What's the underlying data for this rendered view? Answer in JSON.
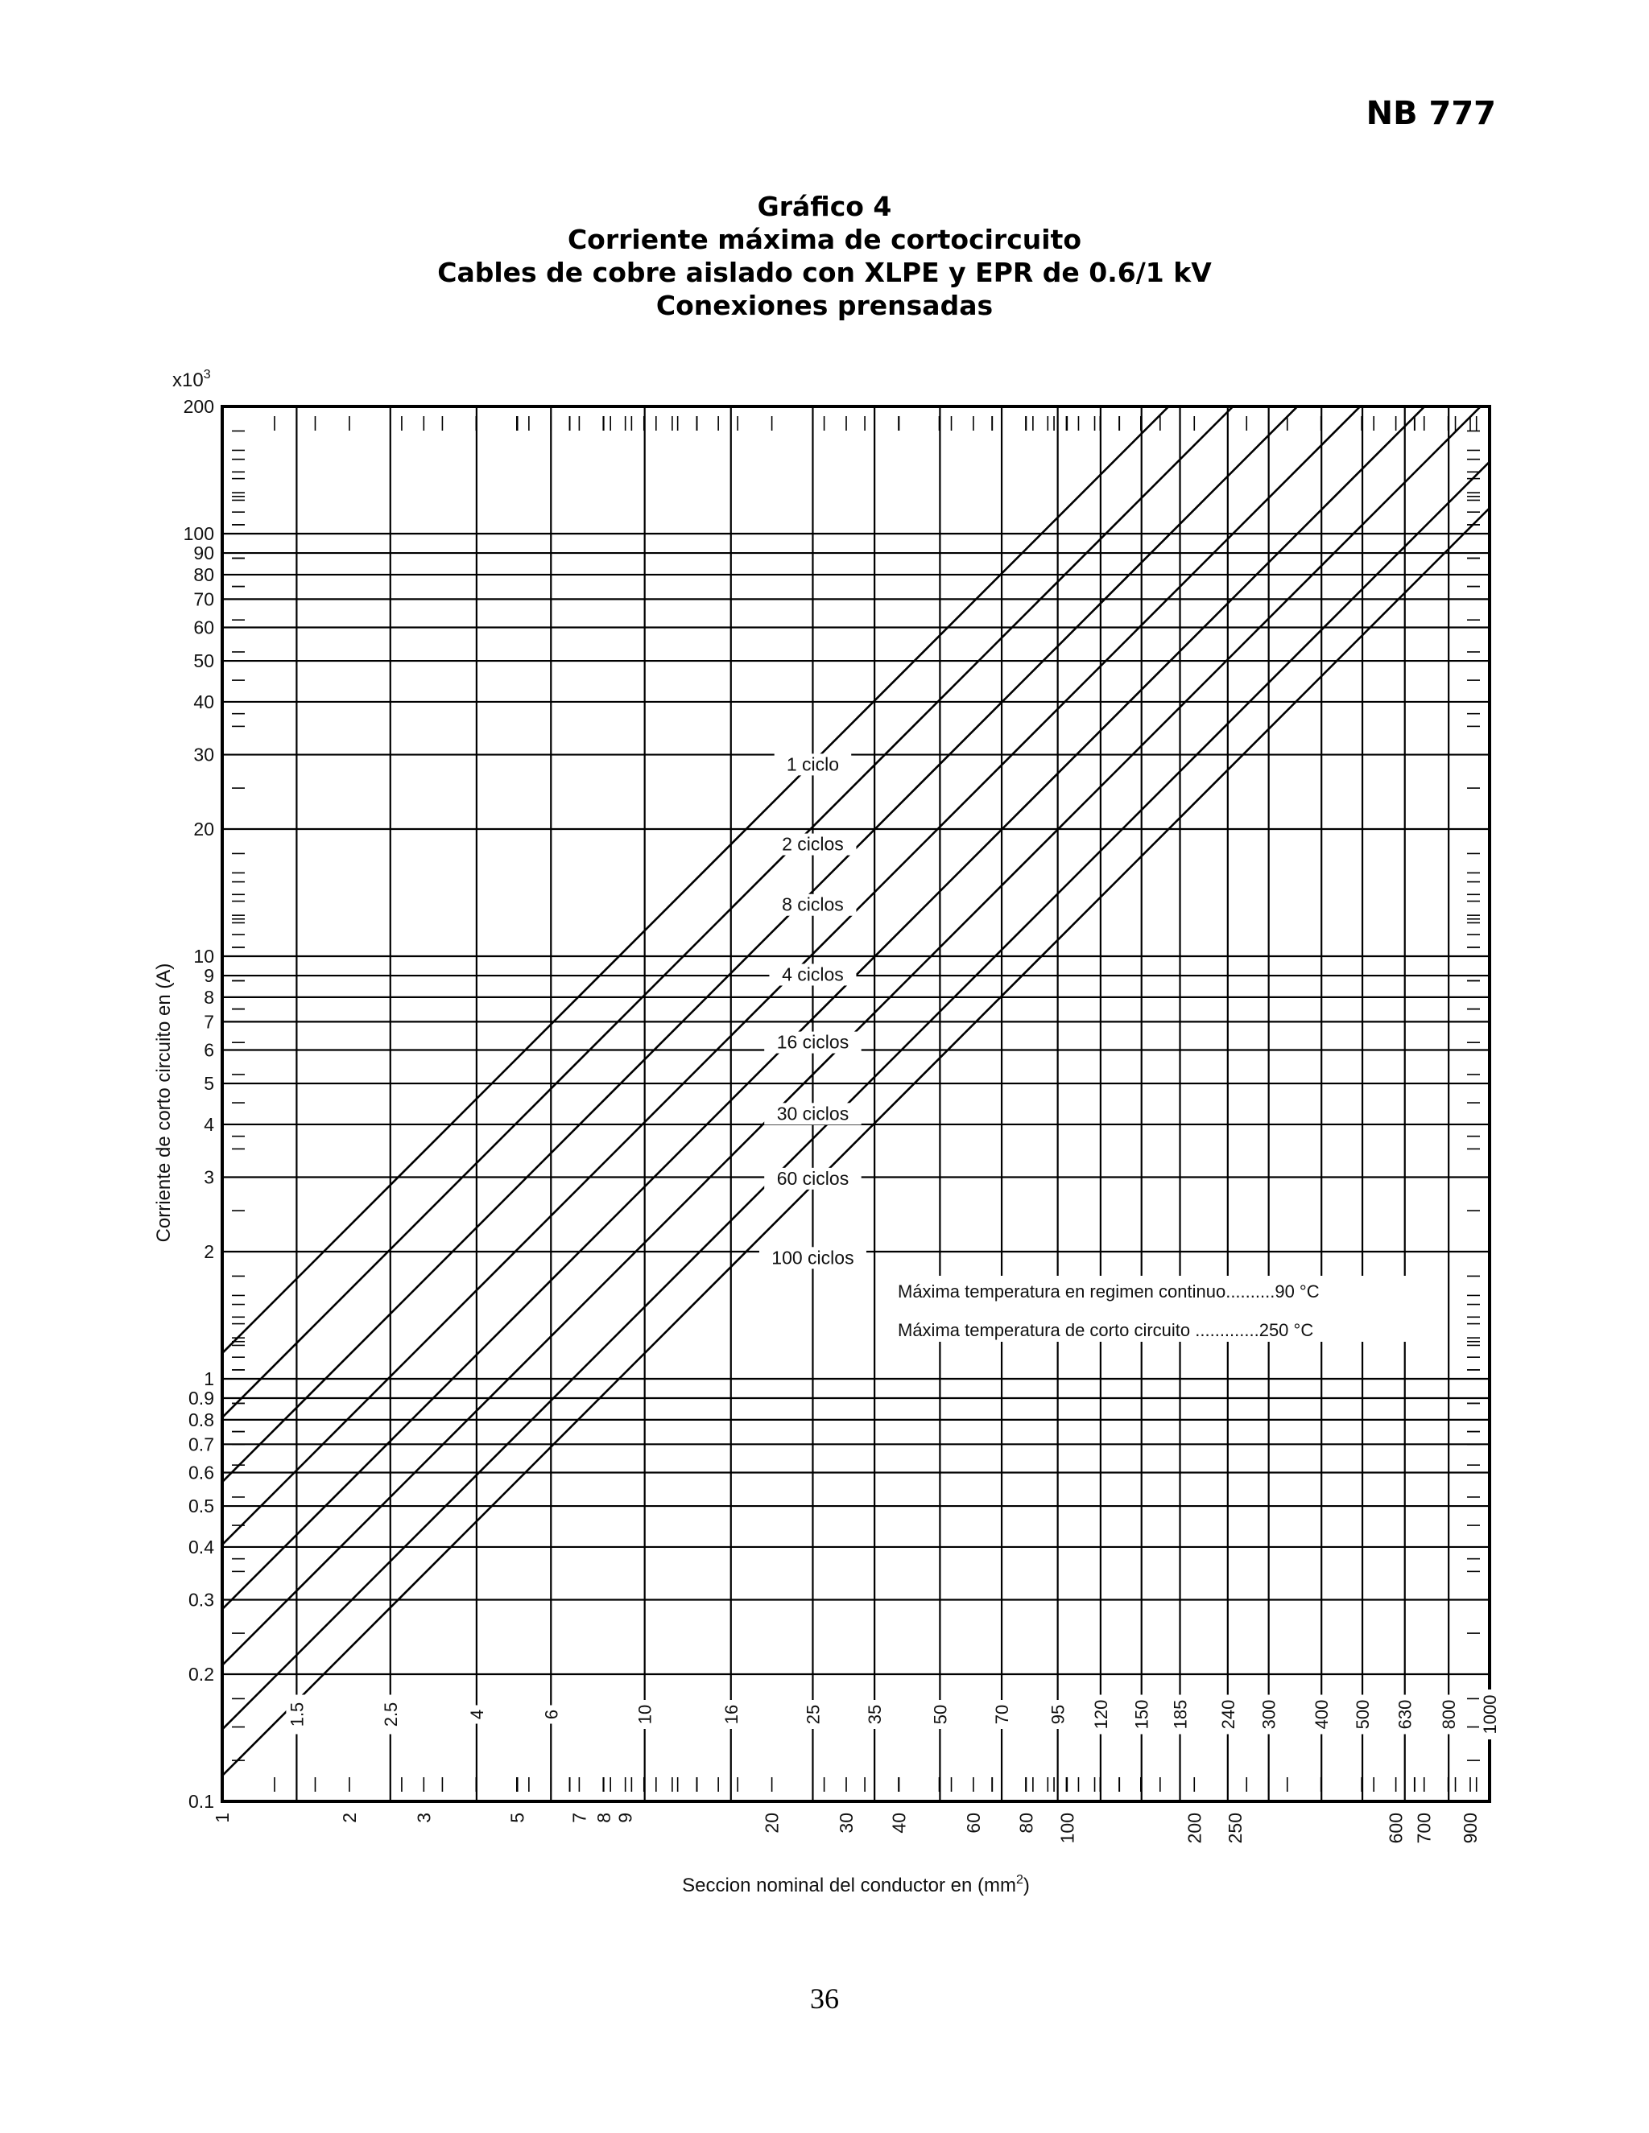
{
  "page": {
    "code": "NB 777",
    "number": "36"
  },
  "chart_title": {
    "line1": "Gráfico 4",
    "line2": "Corriente máxima de cortocircuito",
    "line3": "Cables de cobre aislado con XLPE y EPR de 0.6/1 kV",
    "line4": "Conexiones prensadas"
  },
  "chart_data": {
    "type": "line",
    "title": "Gráfico 4 — Corriente máxima de cortocircuito",
    "xlabel": "Seccion nominal del conductor en (mm",
    "xlabel_sup": "2",
    "xlabel_tail": ")",
    "ylabel": "Corriente de corto circuito en (A)",
    "y_multiplier_label": "x10",
    "y_multiplier_sup": "3",
    "x_scale": "log",
    "y_scale": "log",
    "xlim": [
      1,
      1000
    ],
    "ylim": [
      0.1,
      200
    ],
    "grid": true,
    "x_tick_labels_bottom": [
      {
        "value": 1,
        "label": "1"
      },
      {
        "value": 2,
        "label": "2"
      },
      {
        "value": 3,
        "label": "3"
      },
      {
        "value": 5,
        "label": "5"
      },
      {
        "value": 7,
        "label": "7"
      },
      {
        "value": 8,
        "label": "8"
      },
      {
        "value": 9,
        "label": "9"
      },
      {
        "value": 20,
        "label": "20"
      },
      {
        "value": 30,
        "label": "30"
      },
      {
        "value": 40,
        "label": "40"
      },
      {
        "value": 60,
        "label": "60"
      },
      {
        "value": 80,
        "label": "80"
      },
      {
        "value": 100,
        "label": "100"
      },
      {
        "value": 200,
        "label": "200"
      },
      {
        "value": 250,
        "label": "250"
      },
      {
        "value": 600,
        "label": "600"
      },
      {
        "value": 700,
        "label": "700"
      },
      {
        "value": 900,
        "label": "900"
      }
    ],
    "x_section_labels": [
      {
        "value": 1.5,
        "label": "1.5"
      },
      {
        "value": 2.5,
        "label": "2.5"
      },
      {
        "value": 4,
        "label": "4"
      },
      {
        "value": 6,
        "label": "6"
      },
      {
        "value": 10,
        "label": "10"
      },
      {
        "value": 16,
        "label": "16"
      },
      {
        "value": 25,
        "label": "25"
      },
      {
        "value": 35,
        "label": "35"
      },
      {
        "value": 50,
        "label": "50"
      },
      {
        "value": 70,
        "label": "70"
      },
      {
        "value": 95,
        "label": "95"
      },
      {
        "value": 120,
        "label": "120"
      },
      {
        "value": 150,
        "label": "150"
      },
      {
        "value": 185,
        "label": "185"
      },
      {
        "value": 240,
        "label": "240"
      },
      {
        "value": 300,
        "label": "300"
      },
      {
        "value": 400,
        "label": "400"
      },
      {
        "value": 500,
        "label": "500"
      },
      {
        "value": 630,
        "label": "630"
      },
      {
        "value": 800,
        "label": "800"
      },
      {
        "value": 1000,
        "label": "1000"
      }
    ],
    "y_tick_labels": [
      {
        "value": 200,
        "label": "200"
      },
      {
        "value": 100,
        "label": "100"
      },
      {
        "value": 90,
        "label": "90"
      },
      {
        "value": 80,
        "label": "80"
      },
      {
        "value": 70,
        "label": "70"
      },
      {
        "value": 60,
        "label": "60"
      },
      {
        "value": 50,
        "label": "50"
      },
      {
        "value": 40,
        "label": "40"
      },
      {
        "value": 30,
        "label": "30"
      },
      {
        "value": 20,
        "label": "20"
      },
      {
        "value": 10,
        "label": "10"
      },
      {
        "value": 9,
        "label": "9"
      },
      {
        "value": 8,
        "label": "8"
      },
      {
        "value": 7,
        "label": "7"
      },
      {
        "value": 6,
        "label": "6"
      },
      {
        "value": 5,
        "label": "5"
      },
      {
        "value": 4,
        "label": "4"
      },
      {
        "value": 3,
        "label": "3"
      },
      {
        "value": 2,
        "label": "2"
      },
      {
        "value": 1,
        "label": "1"
      },
      {
        "value": 0.9,
        "label": "0.9"
      },
      {
        "value": 0.8,
        "label": "0.8"
      },
      {
        "value": 0.7,
        "label": "0.7"
      },
      {
        "value": 0.6,
        "label": "0.6"
      },
      {
        "value": 0.5,
        "label": "0.5"
      },
      {
        "value": 0.4,
        "label": "0.4"
      },
      {
        "value": 0.3,
        "label": "0.3"
      },
      {
        "value": 0.2,
        "label": "0.2"
      },
      {
        "value": 0.1,
        "label": "0.1"
      }
    ],
    "series": [
      {
        "name": "1 ciclo",
        "points": [
          [
            1,
            1.15
          ],
          [
            1000,
            1150
          ]
        ]
      },
      {
        "name": "2 ciclos",
        "points": [
          [
            1,
            0.81
          ],
          [
            1000,
            810
          ]
        ]
      },
      {
        "name": "4 ciclos",
        "points": [
          [
            1,
            0.57
          ],
          [
            1000,
            570
          ]
        ]
      },
      {
        "name": "8 ciclos",
        "points": [
          [
            1,
            0.405
          ],
          [
            1000,
            405
          ]
        ]
      },
      {
        "name": "16 ciclos",
        "points": [
          [
            1,
            0.285
          ],
          [
            1000,
            285
          ]
        ]
      },
      {
        "name": "30 ciclos",
        "points": [
          [
            1,
            0.21
          ],
          [
            1000,
            210
          ]
        ]
      },
      {
        "name": "60 ciclos",
        "points": [
          [
            1,
            0.148
          ],
          [
            1000,
            148
          ]
        ]
      },
      {
        "name": "100 ciclos",
        "points": [
          [
            1,
            0.115
          ],
          [
            1000,
            115
          ]
        ]
      }
    ],
    "curve_labels": [
      {
        "text": "1 ciclo",
        "x": 25,
        "y": 27.5
      },
      {
        "text": "2 ciclos",
        "x": 25,
        "y": 17.8
      },
      {
        "text": "8 ciclos",
        "x": 25,
        "y": 12.8
      },
      {
        "text": "4 ciclos",
        "x": 25,
        "y": 8.75
      },
      {
        "text": "16 ciclos",
        "x": 25,
        "y": 6.05
      },
      {
        "text": "30 ciclos",
        "x": 25,
        "y": 4.1
      },
      {
        "text": "60 ciclos",
        "x": 25,
        "y": 2.88
      },
      {
        "text": "100 ciclos",
        "x": 25,
        "y": 1.87
      }
    ],
    "annotations": [
      "Máxima temperatura en regimen continuo..........90 °C",
      "Máxima temperatura de corto circuito .............250 °C"
    ]
  }
}
